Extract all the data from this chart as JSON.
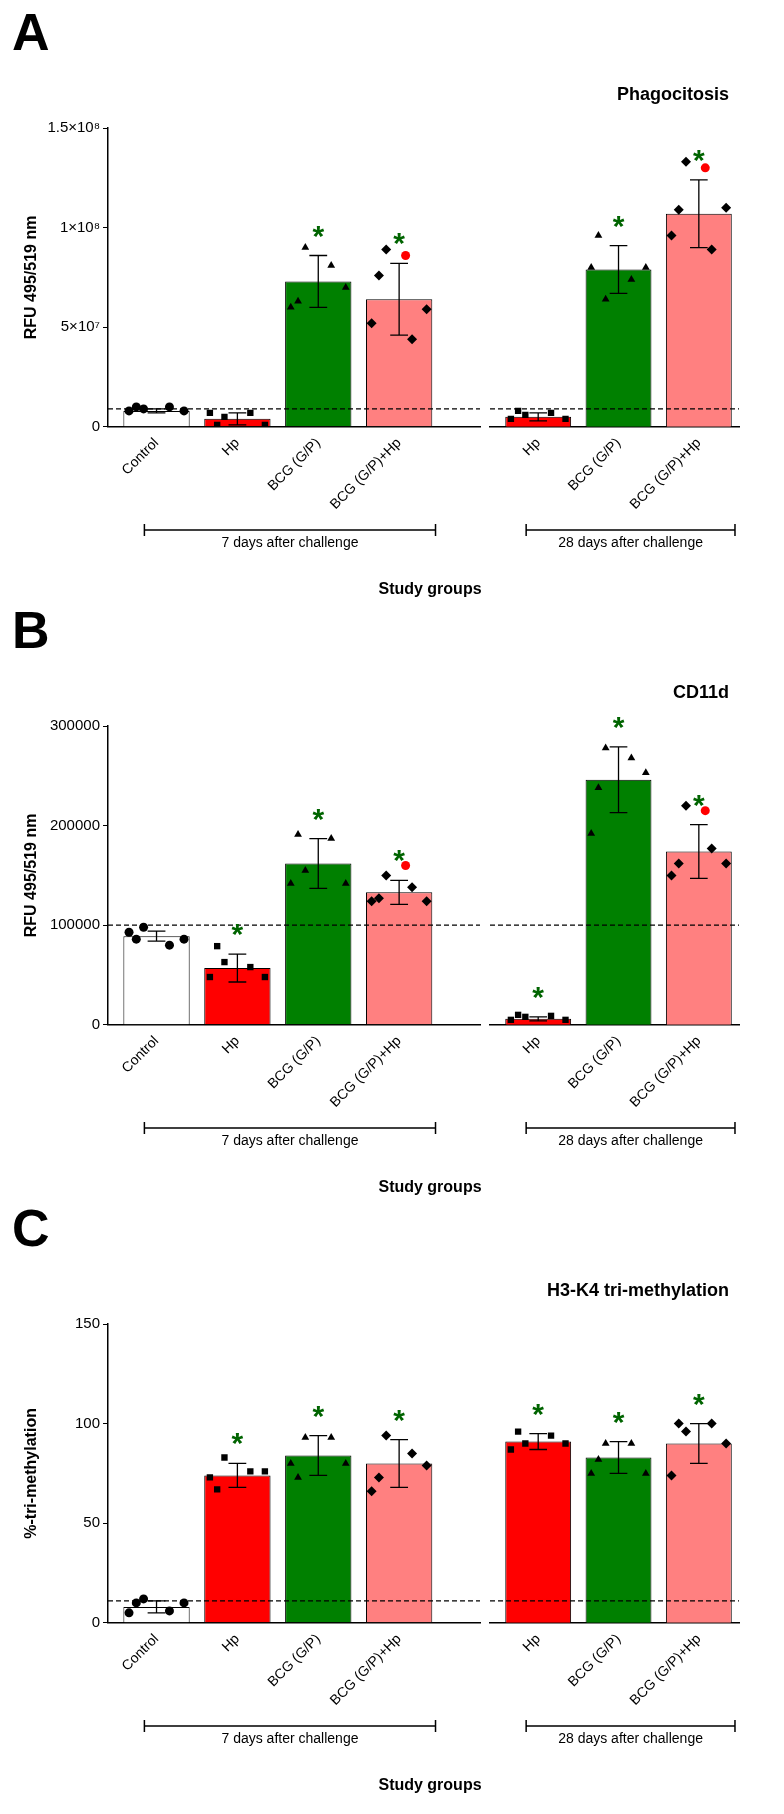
{
  "chart_data": [
    {
      "type": "bar",
      "xlabel": "Study groups",
      "ylabel": "RFU 495/519 nm",
      "annotations": [
        "A",
        "7 days after challenge"
      ],
      "grid": false,
      "legend": false,
      "categories": [
        "Control",
        "Hp",
        "BCG (G/P)",
        "BCG (G/P)+Hp"
      ],
      "ylim": [
        0,
        150000000
      ],
      "yticks": [
        0,
        {
          "value": 50000000,
          "label": "5×10⁷"
        },
        {
          "value": 100000000,
          "label": "1×10⁸"
        },
        {
          "value": 150000000,
          "label": "1.5×10⁸"
        }
      ],
      "ref_lines": [
        {
          "axis": "y",
          "value": 9000000,
          "line_style": "dashed",
          "color": "#000000"
        }
      ],
      "series": [
        {
          "values": [
            8000000,
            4000000,
            73000000,
            64000000
          ],
          "colors": [
            "#ffffff",
            "#ff0000",
            "#008000",
            "#ff8080"
          ],
          "errors": [
            1000000,
            3000000,
            13000000,
            18000000
          ],
          "value_labels": [
            null,
            null,
            "*",
            "*"
          ]
        },
        {
          "type": "scatter",
          "marker": "circle",
          "color": "#000000",
          "x": [
            "Control",
            "Control",
            "Control",
            "Control",
            "Control"
          ],
          "values": [
            8000000,
            10000000,
            9000000,
            10000000,
            8000000
          ]
        },
        {
          "type": "scatter",
          "marker": "square",
          "color": "#000000",
          "x": [
            "Hp",
            "Hp",
            "Hp",
            "Hp",
            "Hp"
          ],
          "values": [
            7000000,
            1000000,
            5000000,
            7000000,
            1000000
          ]
        },
        {
          "type": "scatter",
          "marker": "triangle",
          "color": "#000000",
          "x": [
            "BCG (G/P)",
            "BCG (G/P)",
            "BCG (G/P)",
            "BCG (G/P)",
            "BCG (G/P)"
          ],
          "values": [
            60000000,
            63000000,
            90000000,
            81000000,
            70000000
          ]
        },
        {
          "type": "scatter",
          "marker": "diamond",
          "color": "#000000",
          "x": [
            "BCG (G/P)+Hp",
            "BCG (G/P)+Hp",
            "BCG (G/P)+Hp",
            "BCG (G/P)+Hp",
            "BCG (G/P)+Hp"
          ],
          "values": [
            52000000,
            76000000,
            89000000,
            44000000,
            59000000
          ]
        },
        {
          "type": "scatter",
          "marker": "circle",
          "color": "#ff0000",
          "x": [
            "BCG (G/P)+Hp"
          ],
          "values": [
            86000000
          ]
        }
      ]
    },
    {
      "type": "bar",
      "title": "Phagocitosis",
      "annotations": [
        "28 days after challenge"
      ],
      "grid": false,
      "legend": false,
      "tick_labels": "x",
      "categories": [
        "Hp",
        "BCG (G/P)",
        "BCG (G/P)+Hp"
      ],
      "ylim": [
        0,
        150000000
      ],
      "yticks": [
        0,
        50000000,
        100000000,
        150000000
      ],
      "ref_lines": [
        {
          "axis": "y",
          "value": 9000000,
          "line_style": "dashed",
          "color": "#000000"
        }
      ],
      "series": [
        {
          "values": [
            5000000,
            79000000,
            107000000
          ],
          "colors": [
            "#ff0000",
            "#008000",
            "#ff8080"
          ],
          "errors": [
            2000000,
            12000000,
            17000000
          ],
          "value_labels": [
            null,
            "*",
            "*"
          ]
        },
        {
          "type": "scatter",
          "marker": "square",
          "color": "#000000",
          "x": [
            "Hp",
            "Hp",
            "Hp",
            "Hp",
            "Hp"
          ],
          "values": [
            4000000,
            8000000,
            6000000,
            7000000,
            4000000
          ]
        },
        {
          "type": "scatter",
          "marker": "triangle",
          "color": "#000000",
          "x": [
            "BCG (G/P)",
            "BCG (G/P)",
            "BCG (G/P)",
            "BCG (G/P)",
            "BCG (G/P)"
          ],
          "values": [
            80000000,
            96000000,
            64000000,
            74000000,
            80000000
          ]
        },
        {
          "type": "scatter",
          "marker": "diamond",
          "color": "#000000",
          "x": [
            "BCG (G/P)+Hp",
            "BCG (G/P)+Hp",
            "BCG (G/P)+Hp",
            "BCG (G/P)+Hp",
            "BCG (G/P)+Hp"
          ],
          "values": [
            96000000,
            109000000,
            133000000,
            89000000,
            110000000
          ]
        },
        {
          "type": "scatter",
          "marker": "circle",
          "color": "#ff0000",
          "x": [
            "BCG (G/P)+Hp"
          ],
          "values": [
            130000000
          ]
        }
      ]
    },
    {
      "type": "bar",
      "xlabel": "Study groups",
      "ylabel": "RFU 495/519 nm",
      "annotations": [
        "B",
        "7 days after challenge"
      ],
      "grid": false,
      "legend": false,
      "categories": [
        "Control",
        "Hp",
        "BCG (G/P)",
        "BCG (G/P)+Hp"
      ],
      "ylim": [
        0,
        300000
      ],
      "yticks": [
        0,
        100000,
        200000,
        300000
      ],
      "ref_lines": [
        {
          "axis": "y",
          "value": 100000,
          "line_style": "dashed",
          "color": "#000000"
        }
      ],
      "series": [
        {
          "values": [
            89000,
            57000,
            162000,
            133000
          ],
          "colors": [
            "#ffffff",
            "#ff0000",
            "#008000",
            "#ff8080"
          ],
          "errors": [
            5000,
            14000,
            25000,
            12000
          ],
          "value_labels": [
            null,
            "*",
            "*",
            "*"
          ]
        },
        {
          "type": "scatter",
          "marker": "circle",
          "color": "#000000",
          "x": [
            "Control",
            "Control",
            "Control",
            "Control",
            "Control"
          ],
          "values": [
            93000,
            86000,
            98000,
            80000,
            86000
          ]
        },
        {
          "type": "scatter",
          "marker": "square",
          "color": "#000000",
          "x": [
            "Hp",
            "Hp",
            "Hp",
            "Hp",
            "Hp"
          ],
          "values": [
            48000,
            79000,
            63000,
            58000,
            48000
          ]
        },
        {
          "type": "scatter",
          "marker": "triangle",
          "color": "#000000",
          "x": [
            "BCG (G/P)",
            "BCG (G/P)",
            "BCG (G/P)",
            "BCG (G/P)",
            "BCG (G/P)"
          ],
          "values": [
            142000,
            191000,
            155000,
            187000,
            142000
          ]
        },
        {
          "type": "scatter",
          "marker": "diamond",
          "color": "#000000",
          "x": [
            "BCG (G/P)+Hp",
            "BCG (G/P)+Hp",
            "BCG (G/P)+Hp",
            "BCG (G/P)+Hp",
            "BCG (G/P)+Hp"
          ],
          "values": [
            124000,
            127000,
            150000,
            138000,
            124000
          ]
        },
        {
          "type": "scatter",
          "marker": "circle",
          "color": "#ff0000",
          "x": [
            "BCG (G/P)+Hp"
          ],
          "values": [
            160000
          ]
        }
      ]
    },
    {
      "type": "bar",
      "title": "CD11d",
      "annotations": [
        "28 days after challenge"
      ],
      "grid": false,
      "legend": false,
      "tick_labels": "x",
      "categories": [
        "Hp",
        "BCG (G/P)",
        "BCG (G/P)+Hp"
      ],
      "ylim": [
        0,
        300000
      ],
      "yticks": [
        0,
        100000,
        200000,
        300000
      ],
      "ref_lines": [
        {
          "axis": "y",
          "value": 100000,
          "line_style": "dashed",
          "color": "#000000"
        }
      ],
      "series": [
        {
          "values": [
            6000,
            246000,
            174000
          ],
          "colors": [
            "#ff0000",
            "#008000",
            "#ff8080"
          ],
          "errors": [
            2000,
            33000,
            27000
          ],
          "value_labels": [
            "*",
            "*",
            "*"
          ]
        },
        {
          "type": "scatter",
          "marker": "square",
          "color": "#000000",
          "x": [
            "Hp",
            "Hp",
            "Hp",
            "Hp",
            "Hp"
          ],
          "values": [
            5000,
            10000,
            8000,
            9000,
            5000
          ]
        },
        {
          "type": "scatter",
          "marker": "triangle",
          "color": "#000000",
          "x": [
            "BCG (G/P)",
            "BCG (G/P)",
            "BCG (G/P)",
            "BCG (G/P)",
            "BCG (G/P)"
          ],
          "values": [
            192000,
            238000,
            278000,
            268000,
            253000
          ]
        },
        {
          "type": "scatter",
          "marker": "diamond",
          "color": "#000000",
          "x": [
            "BCG (G/P)+Hp",
            "BCG (G/P)+Hp",
            "BCG (G/P)+Hp",
            "BCG (G/P)+Hp",
            "BCG (G/P)+Hp"
          ],
          "values": [
            150000,
            162000,
            220000,
            177000,
            162000
          ]
        },
        {
          "type": "scatter",
          "marker": "circle",
          "color": "#ff0000",
          "x": [
            "BCG (G/P)+Hp"
          ],
          "values": [
            215000
          ]
        }
      ]
    },
    {
      "type": "bar",
      "xlabel": "Study groups",
      "ylabel": "%-tri-methylation",
      "annotations": [
        "C",
        "7 days after challenge"
      ],
      "grid": false,
      "legend": false,
      "categories": [
        "Control",
        "Hp",
        "BCG (G/P)",
        "BCG (G/P)+Hp"
      ],
      "ylim": [
        0,
        150
      ],
      "yticks": [
        0,
        50,
        100,
        150
      ],
      "ref_lines": [
        {
          "axis": "y",
          "value": 11,
          "line_style": "dashed",
          "color": "#000000"
        }
      ],
      "series": [
        {
          "values": [
            8,
            74,
            84,
            80
          ],
          "colors": [
            "#ffffff",
            "#ff0000",
            "#008000",
            "#ff8080"
          ],
          "errors": [
            3,
            6,
            10,
            12
          ],
          "value_labels": [
            null,
            "*",
            "*",
            "*"
          ]
        },
        {
          "type": "scatter",
          "marker": "circle",
          "color": "#000000",
          "x": [
            "Control",
            "Control",
            "Control",
            "Control",
            "Control"
          ],
          "values": [
            5,
            10,
            12,
            6,
            10
          ]
        },
        {
          "type": "scatter",
          "marker": "square",
          "color": "#000000",
          "x": [
            "Hp",
            "Hp",
            "Hp",
            "Hp",
            "Hp"
          ],
          "values": [
            73,
            67,
            83,
            76,
            76
          ]
        },
        {
          "type": "scatter",
          "marker": "triangle",
          "color": "#000000",
          "x": [
            "BCG (G/P)",
            "BCG (G/P)",
            "BCG (G/P)",
            "BCG (G/P)",
            "BCG (G/P)"
          ],
          "values": [
            80,
            73,
            93,
            93,
            80
          ]
        },
        {
          "type": "scatter",
          "marker": "diamond",
          "color": "#000000",
          "x": [
            "BCG (G/P)+Hp",
            "BCG (G/P)+Hp",
            "BCG (G/P)+Hp",
            "BCG (G/P)+Hp",
            "BCG (G/P)+Hp"
          ],
          "values": [
            66,
            73,
            94,
            85,
            79
          ]
        }
      ]
    },
    {
      "type": "bar",
      "title": "H3-K4 tri-methylation",
      "annotations": [
        "28 days after challenge"
      ],
      "grid": false,
      "legend": false,
      "tick_labels": "x",
      "categories": [
        "Hp",
        "BCG (G/P)",
        "BCG (G/P)+Hp"
      ],
      "ylim": [
        0,
        150
      ],
      "yticks": [
        0,
        50,
        100,
        150
      ],
      "ref_lines": [
        {
          "axis": "y",
          "value": 11,
          "line_style": "dashed",
          "color": "#000000"
        }
      ],
      "series": [
        {
          "values": [
            91,
            83,
            90
          ],
          "colors": [
            "#ff0000",
            "#008000",
            "#ff8080"
          ],
          "errors": [
            4,
            8,
            10
          ],
          "value_labels": [
            "*",
            "*",
            "*"
          ]
        },
        {
          "type": "scatter",
          "marker": "square",
          "color": "#000000",
          "x": [
            "Hp",
            "Hp",
            "Hp",
            "Hp",
            "Hp"
          ],
          "values": [
            87,
            96,
            90,
            94,
            90
          ]
        },
        {
          "type": "scatter",
          "marker": "triangle",
          "color": "#000000",
          "x": [
            "BCG (G/P)",
            "BCG (G/P)",
            "BCG (G/P)",
            "BCG (G/P)",
            "BCG (G/P)"
          ],
          "values": [
            75,
            82,
            90,
            90,
            75
          ]
        },
        {
          "type": "scatter",
          "marker": "diamond",
          "color": "#000000",
          "x": [
            "BCG (G/P)+Hp",
            "BCG (G/P)+Hp",
            "BCG (G/P)+Hp",
            "BCG (G/P)+Hp",
            "BCG (G/P)+Hp"
          ],
          "values": [
            74,
            100,
            96,
            100,
            90
          ]
        }
      ]
    }
  ]
}
